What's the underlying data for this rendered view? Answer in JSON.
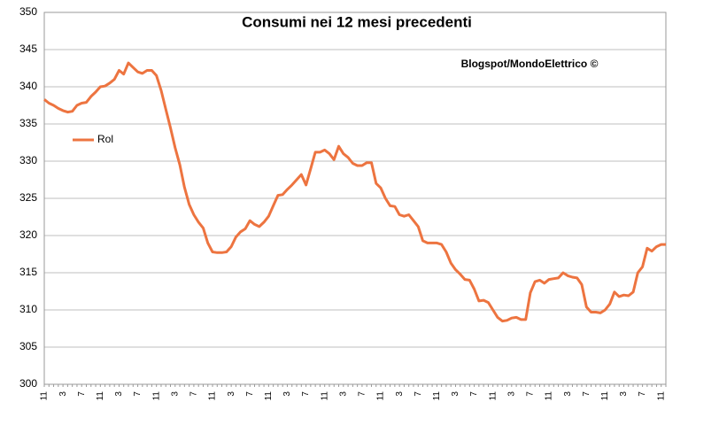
{
  "chart_data": {
    "type": "line",
    "title": "Consumi nei 12 mesi precedenti",
    "annotation": "Blogspot/MondoElettrico ©",
    "categories": [
      "11",
      null,
      null,
      null,
      "3",
      null,
      null,
      null,
      "7",
      null,
      null,
      null,
      "11",
      null,
      null,
      null,
      "3",
      null,
      null,
      null,
      "7",
      null,
      null,
      null,
      "11",
      null,
      null,
      null,
      "3",
      null,
      null,
      null,
      "7",
      null,
      null,
      null,
      "11",
      null,
      null,
      null,
      "3",
      null,
      null,
      null,
      "7",
      null,
      null,
      null,
      "11",
      null,
      null,
      null,
      "3",
      null,
      null,
      null,
      "7",
      null,
      null,
      null,
      "11",
      null,
      null,
      null,
      "3",
      null,
      null,
      null,
      "7",
      null,
      null,
      null,
      "11",
      null,
      null,
      null,
      "3",
      null,
      null,
      null,
      "7",
      null,
      null,
      null,
      "11",
      null,
      null,
      null,
      "3",
      null,
      null,
      null,
      "7",
      null,
      null,
      null,
      "11",
      null,
      null,
      null,
      "3",
      null,
      null,
      null,
      "7",
      null,
      null,
      null,
      "11",
      null,
      null,
      null,
      "3",
      null,
      null,
      null,
      "7",
      null,
      null,
      null,
      "11",
      null,
      null,
      null,
      "3",
      null,
      null,
      null,
      "7",
      null,
      null,
      null,
      "11",
      null
    ],
    "series": [
      {
        "name": "Rol",
        "color": "#ed7440",
        "values": [
          338.3,
          337.8,
          337.5,
          337.1,
          336.8,
          336.6,
          336.7,
          337.5,
          337.8,
          337.9,
          338.7,
          339.3,
          340,
          340.1,
          340.5,
          341,
          342.2,
          341.7,
          343.2,
          342.6,
          342,
          341.8,
          342.2,
          342.2,
          341.5,
          339.5,
          337,
          334.5,
          331.8,
          329.5,
          326.5,
          324.2,
          322.8,
          321.8,
          321,
          319,
          317.8,
          317.7,
          317.7,
          317.8,
          318.5,
          319.8,
          320.5,
          320.9,
          322,
          321.5,
          321.2,
          321.8,
          322.6,
          324,
          325.4,
          325.5,
          326.2,
          326.8,
          327.5,
          328.2,
          326.8,
          329,
          331.2,
          331.2,
          331.5,
          331,
          330.2,
          332,
          331,
          330.5,
          329.7,
          329.4,
          329.4,
          329.8,
          329.8,
          327,
          326.4,
          325,
          324,
          323.9,
          322.8,
          322.6,
          322.8,
          322,
          321.2,
          319.3,
          319,
          319,
          319,
          318.8,
          317.8,
          316.3,
          315.4,
          314.8,
          314.1,
          314,
          312.8,
          311.2,
          311.3,
          311,
          310,
          309,
          308.5,
          308.6,
          308.9,
          309,
          308.7,
          308.7,
          312.3,
          313.8,
          314,
          313.6,
          314.1,
          314.2,
          314.3,
          315,
          314.6,
          314.4,
          314.3,
          313.4,
          310.4,
          309.7,
          309.7,
          309.6,
          310,
          310.8,
          312.4,
          311.8,
          312,
          311.9,
          312.4,
          315,
          315.8,
          318.3,
          317.9,
          318.5,
          318.8,
          318.8
        ]
      }
    ],
    "ylim": [
      300,
      350
    ],
    "yticks": [
      300,
      305,
      310,
      315,
      320,
      325,
      330,
      335,
      340,
      345,
      350
    ],
    "grid": true,
    "legend": "left"
  }
}
